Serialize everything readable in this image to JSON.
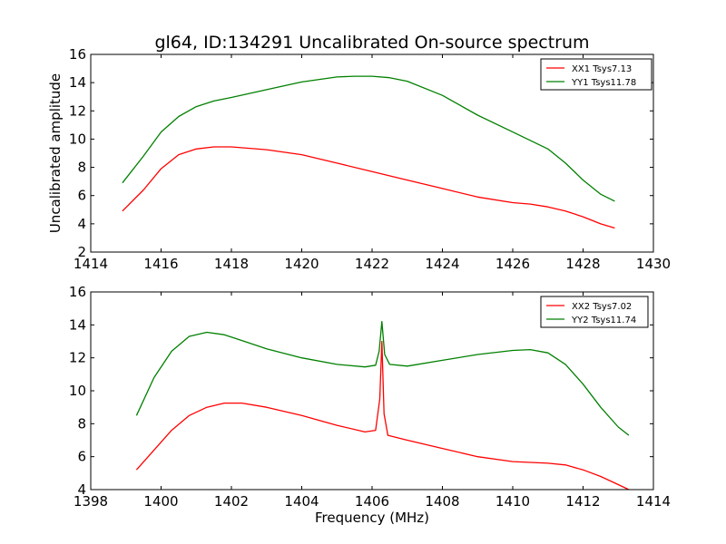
{
  "title": "gl64, ID:134291 Uncalibrated On-source spectrum",
  "colors": {
    "red": "#ff0000",
    "green": "#008000"
  },
  "chart_data": [
    {
      "type": "line",
      "title": "gl64, ID:134291 Uncalibrated On-source spectrum",
      "xlabel": "",
      "ylabel": "Uncalibrated amplitude",
      "xlim": [
        1414,
        1430
      ],
      "ylim": [
        2,
        16
      ],
      "xticks": [
        1414,
        1416,
        1418,
        1420,
        1422,
        1424,
        1426,
        1428,
        1430
      ],
      "yticks": [
        2,
        4,
        6,
        8,
        10,
        12,
        14,
        16
      ],
      "grid": false,
      "legend_position": "top-right",
      "series": [
        {
          "name": "XX1 Tsys7.13",
          "color": "#ff0000",
          "x": [
            1414.9,
            1415.5,
            1416.0,
            1416.5,
            1417.0,
            1417.5,
            1418.0,
            1419.0,
            1420.0,
            1421.0,
            1422.0,
            1423.0,
            1424.0,
            1425.0,
            1426.0,
            1426.5,
            1427.0,
            1427.5,
            1428.0,
            1428.5,
            1428.9
          ],
          "y": [
            4.9,
            6.4,
            7.9,
            8.9,
            9.3,
            9.45,
            9.45,
            9.25,
            8.9,
            8.3,
            7.7,
            7.1,
            6.5,
            5.9,
            5.5,
            5.4,
            5.2,
            4.9,
            4.5,
            4.0,
            3.7
          ]
        },
        {
          "name": "YY1 Tsys11.78",
          "color": "#008000",
          "x": [
            1414.9,
            1415.5,
            1416.0,
            1416.5,
            1417.0,
            1417.5,
            1418.0,
            1419.0,
            1420.0,
            1421.0,
            1421.5,
            1422.0,
            1422.5,
            1423.0,
            1424.0,
            1425.0,
            1426.0,
            1427.0,
            1427.5,
            1428.0,
            1428.5,
            1428.9
          ],
          "y": [
            6.9,
            8.8,
            10.5,
            11.6,
            12.3,
            12.7,
            12.95,
            13.5,
            14.05,
            14.4,
            14.45,
            14.45,
            14.35,
            14.1,
            13.1,
            11.7,
            10.5,
            9.3,
            8.3,
            7.1,
            6.1,
            5.6
          ]
        }
      ]
    },
    {
      "type": "line",
      "title": "",
      "xlabel": "Frequency (MHz)",
      "ylabel": "",
      "xlim": [
        1398,
        1414
      ],
      "ylim": [
        4,
        16
      ],
      "xticks": [
        1398,
        1400,
        1402,
        1404,
        1406,
        1408,
        1410,
        1412,
        1414
      ],
      "yticks": [
        4,
        6,
        8,
        10,
        12,
        14,
        16
      ],
      "grid": false,
      "legend_position": "top-right",
      "series": [
        {
          "name": "XX2 Tsys7.02",
          "color": "#ff0000",
          "x": [
            1399.3,
            1399.8,
            1400.3,
            1400.8,
            1401.3,
            1401.8,
            1402.3,
            1403.0,
            1404.0,
            1405.0,
            1405.8,
            1406.1,
            1406.22,
            1406.28,
            1406.34,
            1406.45,
            1407.0,
            1408.0,
            1409.0,
            1410.0,
            1411.0,
            1411.5,
            1412.0,
            1412.5,
            1413.0,
            1413.3
          ],
          "y": [
            5.2,
            6.4,
            7.6,
            8.5,
            9.0,
            9.25,
            9.25,
            9.0,
            8.5,
            7.9,
            7.5,
            7.6,
            9.5,
            13.0,
            8.6,
            7.3,
            7.0,
            6.5,
            6.0,
            5.7,
            5.6,
            5.5,
            5.2,
            4.8,
            4.3,
            4.0
          ]
        },
        {
          "name": "YY2 Tsys11.74",
          "color": "#008000",
          "x": [
            1399.3,
            1399.8,
            1400.3,
            1400.8,
            1401.3,
            1401.8,
            1402.3,
            1403.0,
            1404.0,
            1405.0,
            1405.8,
            1406.1,
            1406.2,
            1406.28,
            1406.36,
            1406.5,
            1407.0,
            1408.0,
            1409.0,
            1410.0,
            1410.5,
            1411.0,
            1411.5,
            1412.0,
            1412.5,
            1413.0,
            1413.3
          ],
          "y": [
            8.5,
            10.8,
            12.4,
            13.3,
            13.55,
            13.4,
            13.05,
            12.55,
            12.0,
            11.6,
            11.45,
            11.55,
            12.4,
            14.2,
            12.2,
            11.6,
            11.5,
            11.85,
            12.2,
            12.45,
            12.5,
            12.3,
            11.6,
            10.4,
            9.0,
            7.8,
            7.3
          ]
        }
      ]
    }
  ]
}
